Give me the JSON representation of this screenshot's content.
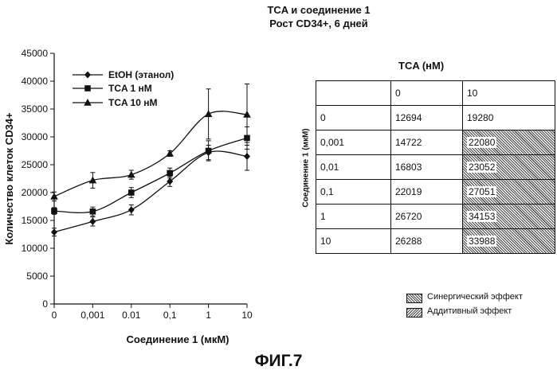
{
  "figure_label": "ФИГ.7",
  "chart_data": {
    "type": "line",
    "title": "TCA и соединение 1",
    "subtitle": "Рост CD34+, 6 дней",
    "xlabel": "Соединение 1 (мкМ)",
    "ylabel": "Количество клеток CD34+",
    "categories": [
      "0",
      "0,001",
      "0.01",
      "0,1",
      "1",
      "10"
    ],
    "yticks": [
      "0",
      "5000",
      "10000",
      "15000",
      "20000",
      "25000",
      "30000",
      "35000",
      "40000",
      "45000"
    ],
    "ylim": [
      0,
      45000
    ],
    "legend_position": "top-left",
    "series": [
      {
        "name": "EtOH (этанол)",
        "marker": "diamond",
        "values": [
          12900,
          14800,
          16900,
          22000,
          27200,
          26500
        ],
        "errors": [
          700,
          800,
          900,
          900,
          1300,
          2500
        ]
      },
      {
        "name": "TCA 1 нМ",
        "marker": "square",
        "values": [
          16700,
          16600,
          20000,
          23500,
          27500,
          29800
        ],
        "errors": [
          600,
          800,
          900,
          900,
          1800,
          2000
        ]
      },
      {
        "name": "TCA 10 нМ",
        "marker": "triangle",
        "values": [
          19300,
          22200,
          23200,
          27000,
          34100,
          34000
        ],
        "errors": [
          800,
          1400,
          800,
          500,
          4500,
          5500
        ]
      }
    ]
  },
  "table": {
    "header": "TCA (нМ)",
    "row_header": "Соединение 1 (мкМ)",
    "columns": [
      "",
      "0",
      "10"
    ],
    "rows": [
      {
        "label": "0",
        "c1": "12694",
        "c2": "19280",
        "effect": "none"
      },
      {
        "label": "0,001",
        "c1": "14722",
        "c2": "22080",
        "effect": "syn"
      },
      {
        "label": "0,01",
        "c1": "16803",
        "c2": "23052",
        "effect": "syn"
      },
      {
        "label": "0,1",
        "c1": "22019",
        "c2": "27051",
        "effect": "syn"
      },
      {
        "label": "1",
        "c1": "26720",
        "c2": "34153",
        "effect": "syn"
      },
      {
        "label": "10",
        "c1": "26288",
        "c2": "33988",
        "effect": "syn"
      }
    ],
    "legend": {
      "synergistic": "Синергический эффект",
      "additive": "Аддитивный эффект"
    }
  }
}
